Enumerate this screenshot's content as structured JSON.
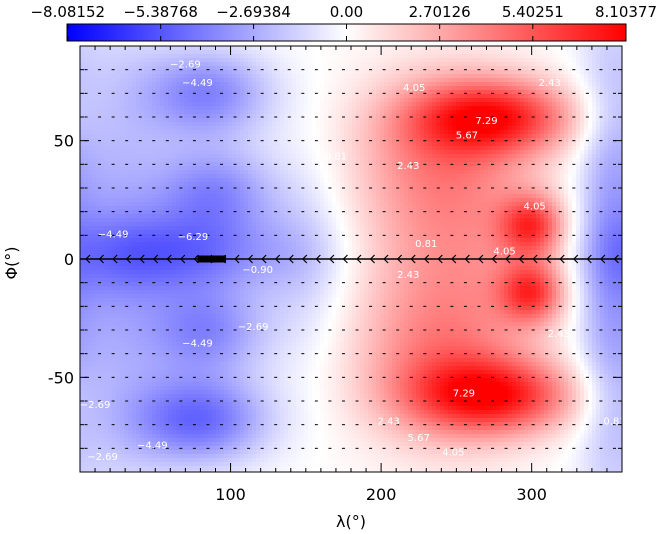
{
  "chart_data": {
    "type": "heatmap",
    "title": "",
    "xlabel": "λ(°)",
    "ylabel": "Φ(°)",
    "xlim": [
      0,
      360
    ],
    "ylim": [
      -90,
      90
    ],
    "x_ticks": [
      {
        "value": 100,
        "label": "100"
      },
      {
        "value": 200,
        "label": "200"
      },
      {
        "value": 300,
        "label": "300"
      }
    ],
    "y_ticks": [
      {
        "value": 50,
        "label": "50"
      },
      {
        "value": 0,
        "label": "0"
      },
      {
        "value": -50,
        "label": "-50"
      }
    ],
    "colorbar": {
      "min": -8.10377,
      "max": 8.10377,
      "tick_values": [
        -8.08152,
        -5.38768,
        -2.69384,
        0.0,
        2.70126,
        5.40251,
        8.10377
      ],
      "tick_labels": [
        "−8.08152",
        "−5.38768",
        "−2.69384",
        "0.00",
        "2.70126",
        "5.40251",
        "8.10377"
      ],
      "colors": {
        "negative": "#0000ff",
        "zero": "#ffffff",
        "positive": "#ff0000"
      }
    },
    "features": [
      {
        "lon": 85,
        "lat": 70,
        "amp": -3.8,
        "wlon": 30,
        "wlat": 13
      },
      {
        "lon": 90,
        "lat": 28,
        "amp": -3.6,
        "wlon": 28,
        "wlat": 14
      },
      {
        "lon": 85,
        "lat": -30,
        "amp": -3.6,
        "wlon": 28,
        "wlat": 14
      },
      {
        "lon": 80,
        "lat": -68,
        "amp": -4.6,
        "wlon": 32,
        "wlat": 13
      },
      {
        "lon": 70,
        "lat": 2,
        "amp": -3.8,
        "wlon": 50,
        "wlat": 12
      },
      {
        "lon": 20,
        "lat": 0,
        "amp": -2.6,
        "wlon": 32,
        "wlat": 70
      },
      {
        "lon": 350,
        "lat": 0,
        "amp": -1.8,
        "wlon": 14,
        "wlat": 70
      },
      {
        "lon": 150,
        "lat": 0,
        "amp": -1.4,
        "wlon": 22,
        "wlat": 30
      },
      {
        "lon": 275,
        "lat": 60,
        "amp": 6.4,
        "wlon": 38,
        "wlat": 11
      },
      {
        "lon": 275,
        "lat": -58,
        "amp": 6.4,
        "wlon": 38,
        "wlat": 11
      },
      {
        "lon": 235,
        "lat": 45,
        "amp": 2.2,
        "wlon": 38,
        "wlat": 22
      },
      {
        "lon": 235,
        "lat": -45,
        "amp": 2.2,
        "wlon": 38,
        "wlat": 22
      },
      {
        "lon": 300,
        "lat": 14,
        "amp": 5.4,
        "wlon": 15,
        "wlat": 9
      },
      {
        "lon": 300,
        "lat": -14,
        "amp": 5.4,
        "wlon": 15,
        "wlat": 9
      },
      {
        "lon": 250,
        "lat": 0,
        "amp": 3.2,
        "wlon": 45,
        "wlat": 45
      }
    ],
    "contour_labels": [
      {
        "text": "−2.69",
        "lon": 70,
        "lat": 81
      },
      {
        "text": "−4.49",
        "lon": 78,
        "lat": 73
      },
      {
        "text": "−4.49",
        "lon": 22,
        "lat": 9
      },
      {
        "text": "−6.29",
        "lon": 75,
        "lat": 8
      },
      {
        "text": "−0.90",
        "lon": 118,
        "lat": -6
      },
      {
        "text": "−2.69",
        "lon": 115,
        "lat": -30
      },
      {
        "text": "−4.49",
        "lon": 78,
        "lat": -37
      },
      {
        "text": "−2.69",
        "lon": 10,
        "lat": -63
      },
      {
        "text": "−4.49",
        "lon": 48,
        "lat": -80
      },
      {
        "text": "−2.69",
        "lon": 15,
        "lat": -85
      },
      {
        "text": "4.05",
        "lon": 222,
        "lat": 71
      },
      {
        "text": "7.29",
        "lon": 270,
        "lat": 57
      },
      {
        "text": "5.67",
        "lon": 257,
        "lat": 51
      },
      {
        "text": "4.05",
        "lon": 302,
        "lat": 21
      },
      {
        "text": "2.43",
        "lon": 312,
        "lat": 73
      },
      {
        "text": "2.43",
        "lon": 218,
        "lat": 38
      },
      {
        "text": "0.81",
        "lon": 230,
        "lat": 5
      },
      {
        "text": "2.43",
        "lon": 218,
        "lat": -8
      },
      {
        "text": "4.05",
        "lon": 282,
        "lat": 2
      },
      {
        "text": "2.43",
        "lon": 318,
        "lat": -33
      },
      {
        "text": "7.29",
        "lon": 255,
        "lat": -58
      },
      {
        "text": "5.67",
        "lon": 225,
        "lat": -77
      },
      {
        "text": "4.05",
        "lon": 248,
        "lat": -83
      },
      {
        "text": "2.43",
        "lon": 205,
        "lat": -70
      },
      {
        "text": "0.81",
        "lon": 170,
        "lat": 42
      },
      {
        "text": "0.81",
        "lon": 355,
        "lat": -70
      }
    ],
    "equator_arrow_line": {
      "lat": 0,
      "lon_start": 0,
      "lon_end": 360,
      "direction": "westward",
      "arrow_spacing_deg": 9
    },
    "vector_grid": {
      "lon_step": 9,
      "lat_step": 10,
      "lat_start": -80,
      "lat_end": 80
    }
  }
}
